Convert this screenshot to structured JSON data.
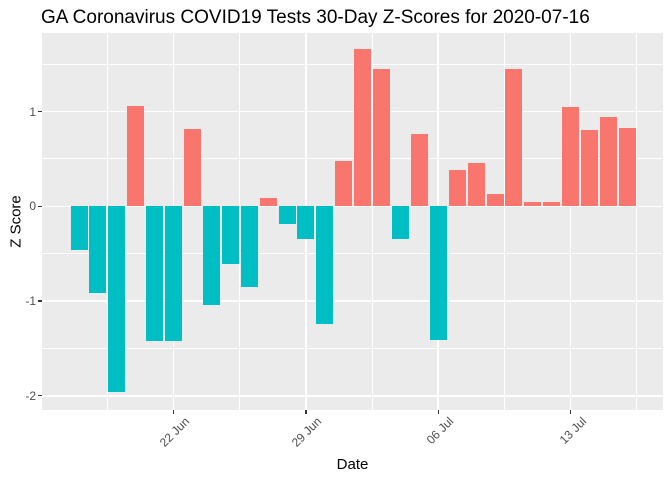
{
  "chart_data": {
    "type": "bar",
    "title": "GA Coronavirus COVID19 Tests 30-Day Z-Scores for 2020-07-16",
    "xlabel": "Date",
    "ylabel": "Z Score",
    "x": [
      "2020-06-17",
      "2020-06-18",
      "2020-06-19",
      "2020-06-20",
      "2020-06-21",
      "2020-06-22",
      "2020-06-23",
      "2020-06-24",
      "2020-06-25",
      "2020-06-26",
      "2020-06-27",
      "2020-06-28",
      "2020-06-29",
      "2020-06-30",
      "2020-07-01",
      "2020-07-02",
      "2020-07-03",
      "2020-07-04",
      "2020-07-05",
      "2020-07-06",
      "2020-07-07",
      "2020-07-08",
      "2020-07-09",
      "2020-07-10",
      "2020-07-11",
      "2020-07-12",
      "2020-07-13",
      "2020-07-14",
      "2020-07-15",
      "2020-07-16"
    ],
    "values": [
      -0.46,
      -0.92,
      -1.96,
      1.06,
      -1.42,
      -1.42,
      0.82,
      -1.04,
      -0.61,
      -0.85,
      0.09,
      -0.19,
      -0.34,
      -1.24,
      0.48,
      1.66,
      1.45,
      -0.35,
      0.76,
      -1.41,
      0.38,
      0.46,
      0.13,
      1.45,
      0.05,
      0.05,
      1.05,
      0.81,
      0.94,
      0.83
    ],
    "x_ticks": [
      {
        "label": "22 Jun",
        "index": 5
      },
      {
        "label": "29 Jun",
        "index": 12
      },
      {
        "label": "06 Jul",
        "index": 19
      },
      {
        "label": "13 Jul",
        "index": 26
      }
    ],
    "y_ticks": [
      "1",
      "0",
      "-1",
      "-2"
    ],
    "y_tick_values": [
      1,
      0,
      -1,
      -2
    ],
    "ylim": [
      -2.15,
      1.83
    ],
    "grid": true,
    "legend": "none",
    "colors": {
      "positive": "#F8766D",
      "negative": "#00BFC4"
    },
    "panel_bg": "#EBEBEB",
    "grid_color": "#FFFFFF"
  }
}
